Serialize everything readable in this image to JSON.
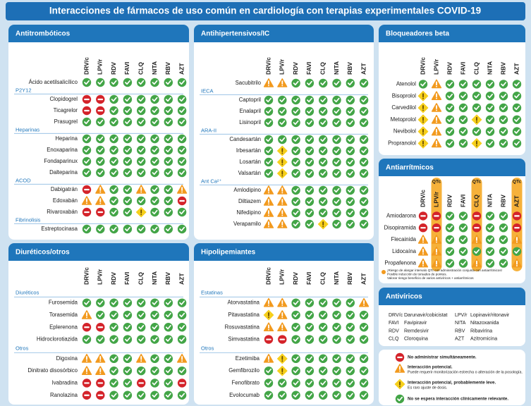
{
  "title": "Interacciones de fármacos de uso común en cardiología con terapias experimentales COVID-19",
  "columns": [
    "DRV/c",
    "LPV/r",
    "RDV",
    "FAVI",
    "CLQ",
    "NITA",
    "RBV",
    "AZT"
  ],
  "panels": [
    {
      "title": "Antitrombóticos",
      "rows": [
        {
          "label": "Ácido acetilsalicílico",
          "status": [
            "ok",
            "ok",
            "ok",
            "ok",
            "ok",
            "ok",
            "ok",
            "ok"
          ]
        },
        {
          "group": "P2Y12"
        },
        {
          "label": "Clopidogrel",
          "status": [
            "no",
            "no",
            "ok",
            "ok",
            "ok",
            "ok",
            "ok",
            "ok"
          ]
        },
        {
          "label": "Ticagrelor",
          "status": [
            "no",
            "no",
            "ok",
            "ok",
            "ok",
            "ok",
            "ok",
            "ok"
          ]
        },
        {
          "label": "Prasugrel",
          "status": [
            "ok",
            "ok",
            "ok",
            "ok",
            "ok",
            "ok",
            "ok",
            "ok"
          ]
        },
        {
          "group": "Heparinas"
        },
        {
          "label": "Heparina",
          "status": [
            "ok",
            "ok",
            "ok",
            "ok",
            "ok",
            "ok",
            "ok",
            "ok"
          ]
        },
        {
          "label": "Enoxaparina",
          "status": [
            "ok",
            "ok",
            "ok",
            "ok",
            "ok",
            "ok",
            "ok",
            "ok"
          ]
        },
        {
          "label": "Fondaparinux",
          "status": [
            "ok",
            "ok",
            "ok",
            "ok",
            "ok",
            "ok",
            "ok",
            "ok"
          ]
        },
        {
          "label": "Dalteparina",
          "status": [
            "ok",
            "ok",
            "ok",
            "ok",
            "ok",
            "ok",
            "ok",
            "ok"
          ]
        },
        {
          "group": "ACOD"
        },
        {
          "label": "Dabigatrán",
          "status": [
            "no",
            "pot",
            "ok",
            "ok",
            "pot",
            "ok",
            "ok",
            "pot"
          ]
        },
        {
          "label": "Edoxabán",
          "status": [
            "pot",
            "pot",
            "ok",
            "ok",
            "ok",
            "ok",
            "ok",
            "no"
          ]
        },
        {
          "label": "Rivaroxabán",
          "status": [
            "no",
            "no",
            "ok",
            "ok",
            "weak",
            "ok",
            "ok",
            "ok"
          ]
        },
        {
          "group": "Fibrinolisis"
        },
        {
          "label": "Estreptocinasa",
          "status": [
            "ok",
            "ok",
            "ok",
            "ok",
            "ok",
            "ok",
            "ok",
            "ok"
          ]
        }
      ]
    },
    {
      "title": "Antihipertensivos/IC",
      "rows": [
        {
          "label": "Sacubitrilo",
          "status": [
            "pot",
            "pot",
            "ok",
            "ok",
            "ok",
            "ok",
            "ok",
            "ok"
          ]
        },
        {
          "group": "IECA"
        },
        {
          "label": "Captopril",
          "status": [
            "ok",
            "ok",
            "ok",
            "ok",
            "ok",
            "ok",
            "ok",
            "ok"
          ]
        },
        {
          "label": "Enalapril",
          "status": [
            "ok",
            "ok",
            "ok",
            "ok",
            "ok",
            "ok",
            "ok",
            "ok"
          ]
        },
        {
          "label": "Lisinopril",
          "status": [
            "ok",
            "ok",
            "ok",
            "ok",
            "ok",
            "ok",
            "ok",
            "ok"
          ]
        },
        {
          "group": "ARA-II"
        },
        {
          "label": "Candesartán",
          "status": [
            "ok",
            "ok",
            "ok",
            "ok",
            "ok",
            "ok",
            "ok",
            "ok"
          ]
        },
        {
          "label": "Irbesartán",
          "status": [
            "ok",
            "weak",
            "ok",
            "ok",
            "ok",
            "ok",
            "ok",
            "ok"
          ]
        },
        {
          "label": "Losartán",
          "status": [
            "ok",
            "weak",
            "ok",
            "ok",
            "ok",
            "ok",
            "ok",
            "ok"
          ]
        },
        {
          "label": "Valsartán",
          "status": [
            "ok",
            "weak",
            "ok",
            "ok",
            "ok",
            "ok",
            "ok",
            "ok"
          ]
        },
        {
          "group": "Ant Ca²⁺"
        },
        {
          "label": "Amlodipino",
          "status": [
            "pot",
            "pot",
            "ok",
            "ok",
            "ok",
            "ok",
            "ok",
            "ok"
          ]
        },
        {
          "label": "Diltiazem",
          "status": [
            "pot",
            "pot",
            "ok",
            "ok",
            "ok",
            "ok",
            "ok",
            "ok"
          ]
        },
        {
          "label": "Nifedipino",
          "status": [
            "pot",
            "pot",
            "ok",
            "ok",
            "ok",
            "ok",
            "ok",
            "ok"
          ]
        },
        {
          "label": "Verapamilo",
          "status": [
            "pot",
            "pot",
            "ok",
            "ok",
            "weak",
            "ok",
            "ok",
            "ok"
          ]
        }
      ]
    },
    {
      "title": "Bloqueadores beta",
      "rows": [
        {
          "label": "Atenolol",
          "status": [
            "ok",
            "pot",
            "ok",
            "ok",
            "ok",
            "ok",
            "ok",
            "ok"
          ]
        },
        {
          "label": "Bisoprolol",
          "status": [
            "weak",
            "pot",
            "ok",
            "ok",
            "ok",
            "ok",
            "ok",
            "ok"
          ]
        },
        {
          "label": "Carvedilol",
          "status": [
            "weak",
            "pot",
            "ok",
            "ok",
            "ok",
            "ok",
            "ok",
            "ok"
          ]
        },
        {
          "label": "Metoprolol",
          "status": [
            "weak",
            "pot",
            "ok",
            "ok",
            "weak",
            "ok",
            "ok",
            "ok"
          ]
        },
        {
          "label": "Nevibolol",
          "status": [
            "weak",
            "pot",
            "ok",
            "ok",
            "ok",
            "ok",
            "ok",
            "ok"
          ]
        },
        {
          "label": "Propranolol",
          "status": [
            "weak",
            "pot",
            "ok",
            "ok",
            "weak",
            "ok",
            "ok",
            "ok"
          ]
        }
      ]
    },
    {
      "title": "Antiarrítmicos",
      "column_notes": [
        null,
        "QTc",
        null,
        null,
        "QTc",
        null,
        null,
        "QTc"
      ],
      "rows": [
        {
          "label": "Amiodarona",
          "status": [
            "no",
            "no",
            "ok",
            "ok",
            "no",
            "ok",
            "ok",
            "no"
          ]
        },
        {
          "label": "Disopiramida",
          "status": [
            "no",
            "no",
            "ok",
            "ok",
            "no",
            "ok",
            "ok",
            "no"
          ]
        },
        {
          "label": "Flecainida",
          "status": [
            "pot",
            "pot",
            "ok",
            "ok",
            "pot",
            "ok",
            "ok",
            "pot"
          ]
        },
        {
          "label": "Lidocaína",
          "status": [
            "pot",
            "pot",
            "ok",
            "ok",
            "ok",
            "ok",
            "ok",
            "ok"
          ]
        },
        {
          "label": "Propafenona",
          "status": [
            "pot",
            "pot",
            "ok",
            "ok",
            "pot",
            "ok",
            "ok",
            "pot"
          ]
        }
      ],
      "notes": [
        "¡Riesgo de alargar intervalo QTc con administración conjunta con antiarrítmicos!",
        "Posible inducción de torsades de pointes.",
        "Valorar riesgo beneficio de varios antivíricos + antiarrítmicos"
      ]
    },
    {
      "title": "Diuréticos/otros",
      "rows": [
        {
          "group": "Diuréticos"
        },
        {
          "label": "Furosemida",
          "status": [
            "ok",
            "ok",
            "ok",
            "ok",
            "ok",
            "ok",
            "ok",
            "ok"
          ]
        },
        {
          "label": "Torasemida",
          "status": [
            "pot",
            "ok",
            "ok",
            "ok",
            "ok",
            "ok",
            "ok",
            "ok"
          ]
        },
        {
          "label": "Eplerenona",
          "status": [
            "no",
            "no",
            "ok",
            "ok",
            "ok",
            "ok",
            "ok",
            "ok"
          ]
        },
        {
          "label": "Hidroclorotiazida",
          "status": [
            "ok",
            "ok",
            "ok",
            "ok",
            "ok",
            "ok",
            "ok",
            "ok"
          ]
        },
        {
          "group": "Otros"
        },
        {
          "label": "Digoxina",
          "status": [
            "pot",
            "pot",
            "ok",
            "ok",
            "pot",
            "ok",
            "ok",
            "pot"
          ]
        },
        {
          "label": "Dinitrato disosórbico",
          "status": [
            "pot",
            "pot",
            "ok",
            "ok",
            "ok",
            "ok",
            "ok",
            "ok"
          ]
        },
        {
          "label": "Ivabradina",
          "status": [
            "no",
            "no",
            "ok",
            "ok",
            "no",
            "ok",
            "ok",
            "no"
          ]
        },
        {
          "label": "Ranolazina",
          "status": [
            "no",
            "no",
            "ok",
            "ok",
            "ok",
            "ok",
            "ok",
            "ok"
          ]
        }
      ]
    },
    {
      "title": "Hipolipemiantes",
      "rows": [
        {
          "group": "Estatinas"
        },
        {
          "label": "Atorvastatina",
          "status": [
            "pot",
            "pot",
            "ok",
            "ok",
            "ok",
            "ok",
            "ok",
            "pot"
          ]
        },
        {
          "label": "Pitavastatina",
          "status": [
            "weak",
            "pot",
            "ok",
            "ok",
            "ok",
            "ok",
            "ok",
            "ok"
          ]
        },
        {
          "label": "Rosuvastatina",
          "status": [
            "pot",
            "pot",
            "ok",
            "ok",
            "ok",
            "ok",
            "ok",
            "ok"
          ]
        },
        {
          "label": "Simvastatina",
          "status": [
            "no",
            "no",
            "ok",
            "ok",
            "ok",
            "ok",
            "ok",
            "ok"
          ]
        },
        {
          "group": "Otros"
        },
        {
          "label": "Ezetimiba",
          "status": [
            "pot",
            "weak",
            "ok",
            "ok",
            "ok",
            "ok",
            "ok",
            "ok"
          ]
        },
        {
          "label": "Gemfibrozilo",
          "status": [
            "ok",
            "weak",
            "ok",
            "ok",
            "ok",
            "ok",
            "ok",
            "ok"
          ]
        },
        {
          "label": "Fenofibrato",
          "status": [
            "ok",
            "ok",
            "ok",
            "ok",
            "ok",
            "ok",
            "ok",
            "ok"
          ]
        },
        {
          "label": "Evolocumab",
          "status": [
            "ok",
            "ok",
            "ok",
            "ok",
            "ok",
            "ok",
            "ok",
            "ok"
          ]
        }
      ]
    }
  ],
  "antivirals": {
    "title": "Antivíricos",
    "items": [
      {
        "abbr": "DRV/c",
        "name": "Darunavir/cobicistat"
      },
      {
        "abbr": "FAVI",
        "name": "Favipiravir"
      },
      {
        "abbr": "RDV",
        "name": "Remdesivir"
      },
      {
        "abbr": "CLQ",
        "name": "Cloroquina"
      },
      {
        "abbr": "LPV/r",
        "name": "Lopinavir/ritonavir"
      },
      {
        "abbr": "NITA",
        "name": "Nitazoxanida"
      },
      {
        "abbr": "RBV",
        "name": "Ribavirina"
      },
      {
        "abbr": "AZT",
        "name": "Azitromicina"
      }
    ]
  },
  "legend": [
    {
      "status": "no",
      "text": "No administrar simultáneamente."
    },
    {
      "status": "pot",
      "text": "Interacción potencial.",
      "note": "Puede requerir monitorización estrecha o alteración de la posología."
    },
    {
      "status": "weak",
      "text": "Interacción potencial, probablemente leve.",
      "note": "Es raro ajuste de dosis."
    },
    {
      "status": "ok",
      "text": "No se espera interacción clínicamente relevante."
    }
  ]
}
